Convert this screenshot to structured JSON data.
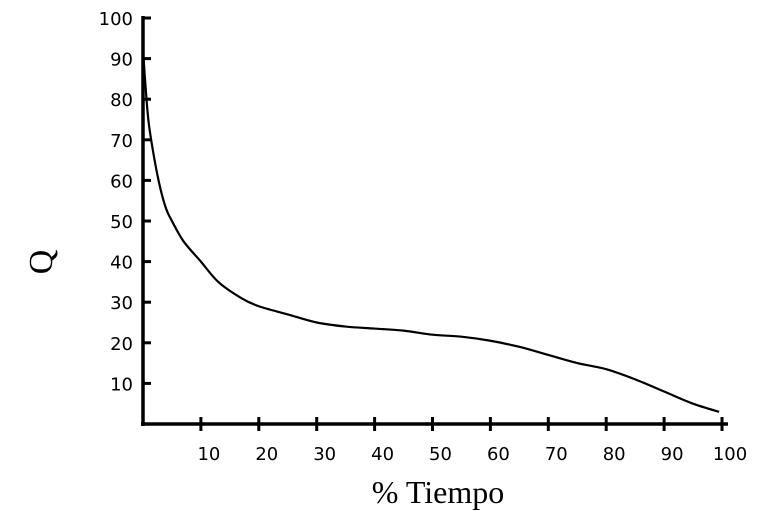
{
  "chart_data": {
    "type": "line",
    "xlabel": "% Tiempo",
    "ylabel": "Q",
    "xlim": [
      0,
      100
    ],
    "ylim": [
      0,
      100
    ],
    "x_ticks": [
      10,
      20,
      30,
      40,
      50,
      60,
      70,
      80,
      90,
      100
    ],
    "x_tick_labels": [
      "10",
      "20",
      "30",
      "40",
      "50",
      "60",
      "70",
      "80",
      "90",
      "100"
    ],
    "y_ticks": [
      10,
      20,
      30,
      40,
      50,
      60,
      70,
      80,
      90,
      100
    ],
    "y_tick_labels": [
      "10",
      "20",
      "30",
      "40",
      "50",
      "60",
      "70",
      "80",
      "90",
      "100"
    ],
    "grid": false,
    "line_color": "#000000",
    "series": [
      {
        "x": [
          0,
          0.5,
          1,
          2,
          3,
          4,
          5,
          7,
          10,
          13,
          17,
          20,
          25,
          30,
          35,
          40,
          45,
          50,
          55,
          60,
          65,
          70,
          75,
          80,
          85,
          90,
          95,
          99.5
        ],
        "y": [
          92,
          82,
          74,
          65,
          58,
          53,
          50,
          45,
          40,
          35,
          31,
          29,
          27,
          25,
          24,
          23.5,
          23,
          22,
          21.5,
          20.5,
          19,
          17,
          15,
          13.5,
          11,
          8,
          5,
          3
        ]
      }
    ]
  }
}
